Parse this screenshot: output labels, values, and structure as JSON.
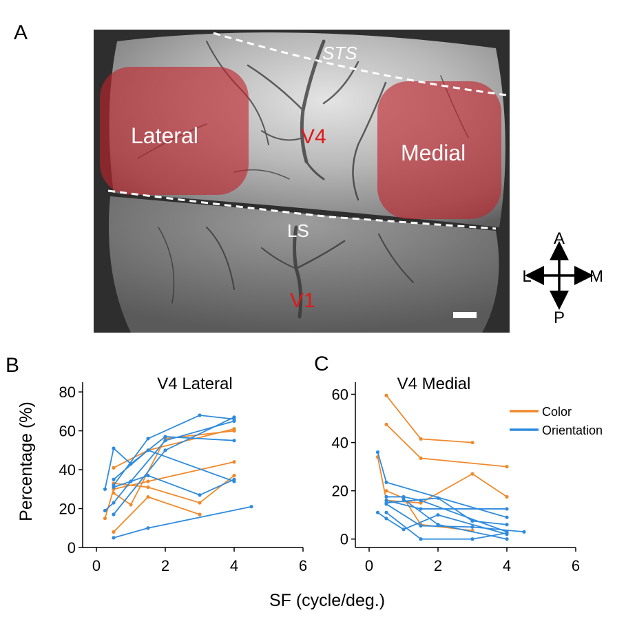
{
  "panels": {
    "a": "A",
    "b": "B",
    "c": "C"
  },
  "image_labels": {
    "sts": "STS",
    "lateral": "Lateral",
    "medial": "Medial",
    "v4": "V4",
    "ls": "LS",
    "v1": "V1"
  },
  "compass": {
    "anterior": "A",
    "posterior": "P",
    "lateral": "L",
    "medial": "M"
  },
  "colors": {
    "color": "#F0892B",
    "orientation": "#2E8BDD",
    "roi": "#C0242C",
    "area_label": "#E01818"
  },
  "xlabel": "SF (cycle/deg.)",
  "ylabel": "Percentage (%)",
  "legend": {
    "color": "Color",
    "orientation": "Orientation"
  },
  "chart_data": [
    {
      "type": "line",
      "title": "V4 Lateral",
      "xlabel": "SF (cycle/deg.)",
      "ylabel": "Percentage (%)",
      "xlim": [
        0,
        6
      ],
      "ylim": [
        0,
        85
      ],
      "xticks": [
        0,
        2,
        4,
        6
      ],
      "yticks": [
        0,
        20,
        40,
        60,
        80
      ],
      "series": [
        {
          "group": "Color",
          "points": [
            [
              0.25,
              15
            ],
            [
              0.5,
              30
            ],
            [
              1.5,
              34
            ],
            [
              4,
              44
            ]
          ]
        },
        {
          "group": "Color",
          "points": [
            [
              0.5,
              41
            ],
            [
              1.5,
              50
            ],
            [
              4,
              61
            ]
          ]
        },
        {
          "group": "Color",
          "points": [
            [
              0.5,
              28
            ],
            [
              1,
              22
            ],
            [
              2,
              56
            ],
            [
              4,
              60
            ]
          ]
        },
        {
          "group": "Color",
          "points": [
            [
              0.5,
              8
            ],
            [
              1.5,
              26
            ],
            [
              3,
              17
            ]
          ]
        },
        {
          "group": "Color",
          "points": [
            [
              0.5,
              33
            ],
            [
              1.5,
              31
            ],
            [
              3,
              23
            ],
            [
              4,
              37
            ]
          ]
        },
        {
          "group": "Orientation",
          "points": [
            [
              0.25,
              30
            ],
            [
              0.5,
              51
            ],
            [
              1,
              43
            ],
            [
              2,
              57
            ],
            [
              4,
              55
            ]
          ]
        },
        {
          "group": "Orientation",
          "points": [
            [
              0.25,
              19
            ],
            [
              0.5,
              23
            ],
            [
              1,
              34
            ],
            [
              2,
              55
            ],
            [
              4,
              65
            ]
          ]
        },
        {
          "group": "Orientation",
          "points": [
            [
              0.5,
              32
            ],
            [
              1.5,
              56
            ],
            [
              3,
              68
            ],
            [
              4,
              66
            ]
          ]
        },
        {
          "group": "Orientation",
          "points": [
            [
              0.5,
              31
            ],
            [
              1.5,
              37
            ],
            [
              3,
              27
            ],
            [
              4,
              35
            ]
          ]
        },
        {
          "group": "Orientation",
          "points": [
            [
              0.5,
              17
            ],
            [
              2,
              50
            ],
            [
              4,
              67
            ]
          ]
        },
        {
          "group": "Orientation",
          "points": [
            [
              0.5,
              35
            ],
            [
              1.5,
              50
            ],
            [
              4,
              34
            ]
          ]
        },
        {
          "group": "Orientation",
          "points": [
            [
              0.5,
              5
            ],
            [
              1.5,
              10
            ],
            [
              4.5,
              21
            ]
          ]
        }
      ]
    },
    {
      "type": "line",
      "title": "V4 Medial",
      "xlabel": "SF (cycle/deg.)",
      "ylabel": "",
      "xlim": [
        0,
        6
      ],
      "ylim": [
        -3.5,
        65
      ],
      "xticks": [
        0,
        2,
        4,
        6
      ],
      "yticks": [
        0,
        20,
        40,
        60
      ],
      "legend": {
        "position": "top-right",
        "entries": [
          "Color",
          "Orientation"
        ]
      },
      "series": [
        {
          "group": "Color",
          "points": [
            [
              0.5,
              59.5
            ],
            [
              1.5,
              41.5
            ],
            [
              3,
              40
            ]
          ]
        },
        {
          "group": "Color",
          "points": [
            [
              0.5,
              47.5
            ],
            [
              1.5,
              33.5
            ],
            [
              4,
              30
            ]
          ]
        },
        {
          "group": "Color",
          "points": [
            [
              0.25,
              34
            ],
            [
              0.5,
              16
            ],
            [
              1.5,
              15
            ],
            [
              3,
              27
            ],
            [
              4,
              17.5
            ]
          ]
        },
        {
          "group": "Color",
          "points": [
            [
              0.5,
              20
            ],
            [
              1,
              17
            ],
            [
              1.5,
              6
            ],
            [
              3,
              3.5
            ]
          ]
        },
        {
          "group": "Orientation",
          "points": [
            [
              0.25,
              36
            ],
            [
              0.5,
              23.5
            ],
            [
              4,
              9
            ]
          ]
        },
        {
          "group": "Orientation",
          "points": [
            [
              0.5,
              17.5
            ],
            [
              1,
              17.5
            ],
            [
              1.5,
              16
            ],
            [
              4,
              3
            ]
          ]
        },
        {
          "group": "Orientation",
          "points": [
            [
              0.5,
              16
            ],
            [
              1.5,
              12.5
            ],
            [
              4,
              12.5
            ]
          ]
        },
        {
          "group": "Orientation",
          "points": [
            [
              0.5,
              15
            ],
            [
              2,
              17
            ],
            [
              3,
              7.5
            ],
            [
              4,
              6
            ]
          ]
        },
        {
          "group": "Orientation",
          "points": [
            [
              0.5,
              14.5
            ],
            [
              1.5,
              5.5
            ],
            [
              3,
              5
            ],
            [
              4.5,
              3
            ]
          ]
        },
        {
          "group": "Orientation",
          "points": [
            [
              0.25,
              11
            ],
            [
              0.5,
              8.5
            ],
            [
              1,
              4
            ],
            [
              2,
              10
            ],
            [
              4,
              2
            ]
          ]
        },
        {
          "group": "Orientation",
          "points": [
            [
              0.5,
              11
            ],
            [
              1.5,
              0
            ],
            [
              3,
              0
            ],
            [
              4,
              2.5
            ]
          ]
        },
        {
          "group": "Orientation",
          "points": [
            [
              1,
              16.5
            ],
            [
              2,
              6
            ],
            [
              4,
              0
            ]
          ]
        }
      ]
    }
  ]
}
